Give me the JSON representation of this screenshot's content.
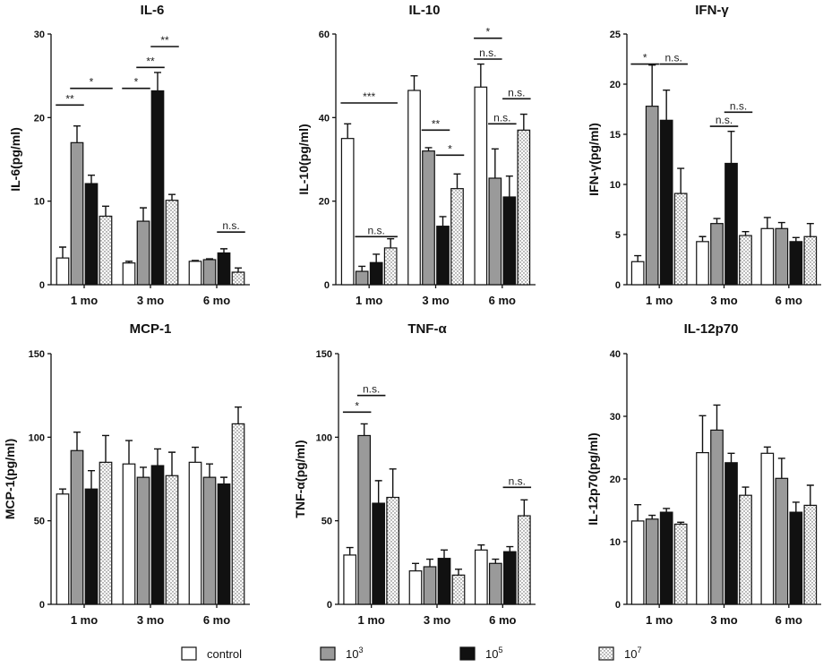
{
  "figure": {
    "groups": [
      "control",
      "10^3",
      "10^5",
      "10^7"
    ],
    "legend": [
      {
        "key": "control",
        "label": "control",
        "sup": "",
        "fill": "white"
      },
      {
        "key": "1e3",
        "label": "10",
        "sup": "3",
        "fill": "gray"
      },
      {
        "key": "1e5",
        "label": "10",
        "sup": "5",
        "fill": "black"
      },
      {
        "key": "1e7",
        "label": "10",
        "sup": "7",
        "fill": "dots"
      }
    ],
    "colors": {
      "gray": "#9a9a9a",
      "black": "#111111",
      "white": "#ffffff",
      "dots": "#bdbdbd"
    }
  },
  "chart_data": [
    {
      "type": "bar",
      "title": "IL-6",
      "ylabel": "IL-6(pg/ml)",
      "categories": [
        "1 mo",
        "3 mo",
        "6 mo"
      ],
      "ylim": [
        0,
        30
      ],
      "yticks": [
        0,
        10,
        20,
        30
      ],
      "series": [
        {
          "name": "control",
          "values": [
            3.2,
            2.6,
            2.8
          ],
          "errors": [
            1.3,
            0.2,
            0.1
          ]
        },
        {
          "name": "10^3",
          "values": [
            17.0,
            7.6,
            3.0
          ],
          "errors": [
            2.0,
            1.6,
            0.1
          ]
        },
        {
          "name": "10^5",
          "values": [
            12.1,
            23.2,
            3.8
          ],
          "errors": [
            1.0,
            2.2,
            0.5
          ]
        },
        {
          "name": "10^7",
          "values": [
            8.2,
            10.1,
            1.5
          ],
          "errors": [
            1.2,
            0.7,
            0.5
          ]
        }
      ],
      "annotations": [
        {
          "cat": 0,
          "from": 0,
          "to": 1,
          "y": 21.5,
          "text": "**"
        },
        {
          "cat": 0,
          "from": 1,
          "to": 3,
          "y": 23.5,
          "text": "*"
        },
        {
          "cat": 1,
          "from": 0,
          "to": 1,
          "y": 23.5,
          "text": "*"
        },
        {
          "cat": 1,
          "from": 1,
          "to": 2,
          "y": 26.0,
          "text": "**"
        },
        {
          "cat": 1,
          "from": 2,
          "to": 3,
          "y": 28.5,
          "text": "**"
        },
        {
          "cat": 2,
          "from": 2,
          "to": 3,
          "y": 6.3,
          "text": "n.s."
        }
      ]
    },
    {
      "type": "bar",
      "title": "IL-10",
      "ylabel": "IL-10(pg/ml)",
      "categories": [
        "1 mo",
        "3 mo",
        "6 mo"
      ],
      "ylim": [
        0,
        60
      ],
      "yticks": [
        0,
        20,
        40,
        60
      ],
      "series": [
        {
          "name": "control",
          "values": [
            35.0,
            46.5,
            47.3
          ],
          "errors": [
            3.5,
            3.5,
            5.5
          ]
        },
        {
          "name": "10^3",
          "values": [
            3.2,
            32.0,
            25.5
          ],
          "errors": [
            1.2,
            0.8,
            7.0
          ]
        },
        {
          "name": "10^5",
          "values": [
            5.3,
            14.0,
            21.0
          ],
          "errors": [
            2.0,
            2.3,
            5.0
          ]
        },
        {
          "name": "10^7",
          "values": [
            8.8,
            23.0,
            37.0
          ],
          "errors": [
            2.2,
            3.5,
            3.8
          ]
        }
      ],
      "annotations": [
        {
          "cat": 0,
          "from": 0,
          "to": 3,
          "y": 43.5,
          "text": "***"
        },
        {
          "cat": 0,
          "from": 1,
          "to": 3,
          "y": 11.5,
          "text": "n.s."
        },
        {
          "cat": 1,
          "from": 1,
          "to": 2,
          "y": 37.0,
          "text": "**"
        },
        {
          "cat": 1,
          "from": 2,
          "to": 3,
          "y": 31.0,
          "text": "*"
        },
        {
          "cat": 2,
          "from": 0,
          "to": 1,
          "y": 59.0,
          "text": "*"
        },
        {
          "cat": 2,
          "from": 0,
          "to": 1,
          "y": 54.0,
          "text": "n.s."
        },
        {
          "cat": 2,
          "from": 1,
          "to": 2,
          "y": 38.5,
          "text": "n.s."
        },
        {
          "cat": 2,
          "from": 2,
          "to": 3,
          "y": 44.5,
          "text": "n.s."
        }
      ]
    },
    {
      "type": "bar",
      "title": "IFN-γ",
      "ylabel": "IFN-γ(pg/ml)",
      "categories": [
        "1 mo",
        "3 mo",
        "6 mo"
      ],
      "ylim": [
        0,
        25
      ],
      "yticks": [
        0,
        5,
        10,
        15,
        20,
        25
      ],
      "series": [
        {
          "name": "control",
          "values": [
            2.3,
            4.3,
            5.6
          ],
          "errors": [
            0.6,
            0.5,
            1.1
          ]
        },
        {
          "name": "10^3",
          "values": [
            17.8,
            6.1,
            5.6
          ],
          "errors": [
            4.1,
            0.5,
            0.6
          ]
        },
        {
          "name": "10^5",
          "values": [
            16.4,
            12.1,
            4.3
          ],
          "errors": [
            3.0,
            3.2,
            0.4
          ]
        },
        {
          "name": "10^7",
          "values": [
            9.1,
            4.9,
            4.8
          ],
          "errors": [
            2.5,
            0.4,
            1.3
          ]
        }
      ],
      "annotations": [
        {
          "cat": 0,
          "from": 0,
          "to": 1,
          "y": 22.0,
          "text": "*"
        },
        {
          "cat": 0,
          "from": 2,
          "to": 3,
          "y": 22.0,
          "text": "n.s."
        },
        {
          "cat": 1,
          "from": 1,
          "to": 2,
          "y": 15.8,
          "text": "n.s."
        },
        {
          "cat": 1,
          "from": 2,
          "to": 3,
          "y": 17.2,
          "text": "n.s."
        }
      ]
    },
    {
      "type": "bar",
      "title": "MCP-1",
      "ylabel": "MCP-1(pg/ml)",
      "categories": [
        "1 mo",
        "3 mo",
        "6 mo"
      ],
      "ylim": [
        0,
        150
      ],
      "yticks": [
        0,
        50,
        100,
        150
      ],
      "series": [
        {
          "name": "control",
          "values": [
            66,
            84,
            85
          ],
          "errors": [
            3,
            14,
            9
          ]
        },
        {
          "name": "10^3",
          "values": [
            92,
            76,
            76
          ],
          "errors": [
            11,
            6,
            8
          ]
        },
        {
          "name": "10^5",
          "values": [
            69,
            83,
            72
          ],
          "errors": [
            11,
            10,
            4
          ]
        },
        {
          "name": "10^7",
          "values": [
            85,
            77,
            108
          ],
          "errors": [
            16,
            14,
            10
          ]
        }
      ],
      "annotations": []
    },
    {
      "type": "bar",
      "title": "TNF-α",
      "ylabel": "TNF-α(pg/ml)",
      "categories": [
        "1 mo",
        "3 mo",
        "6 mo"
      ],
      "ylim": [
        0,
        150
      ],
      "yticks": [
        0,
        50,
        100,
        150
      ],
      "series": [
        {
          "name": "control",
          "values": [
            29.5,
            20.0,
            32.5
          ],
          "errors": [
            4.5,
            4.5,
            3.0
          ]
        },
        {
          "name": "10^3",
          "values": [
            101,
            22.5,
            24.5
          ],
          "errors": [
            7,
            4.5,
            2.5
          ]
        },
        {
          "name": "10^5",
          "values": [
            60.5,
            27.5,
            31.5
          ],
          "errors": [
            13.5,
            5.0,
            3.0
          ]
        },
        {
          "name": "10^7",
          "values": [
            64.0,
            17.5,
            53.0
          ],
          "errors": [
            17.0,
            3.5,
            9.5
          ]
        }
      ],
      "annotations": [
        {
          "cat": 0,
          "from": 0,
          "to": 1,
          "y": 115,
          "text": "*"
        },
        {
          "cat": 0,
          "from": 1,
          "to": 2,
          "y": 125,
          "text": "n.s."
        },
        {
          "cat": 2,
          "from": 2,
          "to": 3,
          "y": 70,
          "text": "n.s."
        }
      ]
    },
    {
      "type": "bar",
      "title": "IL-12p70",
      "ylabel": "IL-12p70(pg/ml)",
      "categories": [
        "1 mo",
        "3 mo",
        "6 mo"
      ],
      "ylim": [
        0,
        40
      ],
      "yticks": [
        0,
        10,
        20,
        30,
        40
      ],
      "series": [
        {
          "name": "control",
          "values": [
            13.3,
            24.2,
            24.1
          ],
          "errors": [
            2.6,
            5.9,
            1.0
          ]
        },
        {
          "name": "10^3",
          "values": [
            13.6,
            27.8,
            20.1
          ],
          "errors": [
            0.6,
            4.0,
            3.2
          ]
        },
        {
          "name": "10^5",
          "values": [
            14.7,
            22.6,
            14.7
          ],
          "errors": [
            0.6,
            1.5,
            1.6
          ]
        },
        {
          "name": "10^7",
          "values": [
            12.8,
            17.4,
            15.8
          ],
          "errors": [
            0.3,
            1.3,
            3.2
          ]
        }
      ],
      "annotations": []
    }
  ]
}
